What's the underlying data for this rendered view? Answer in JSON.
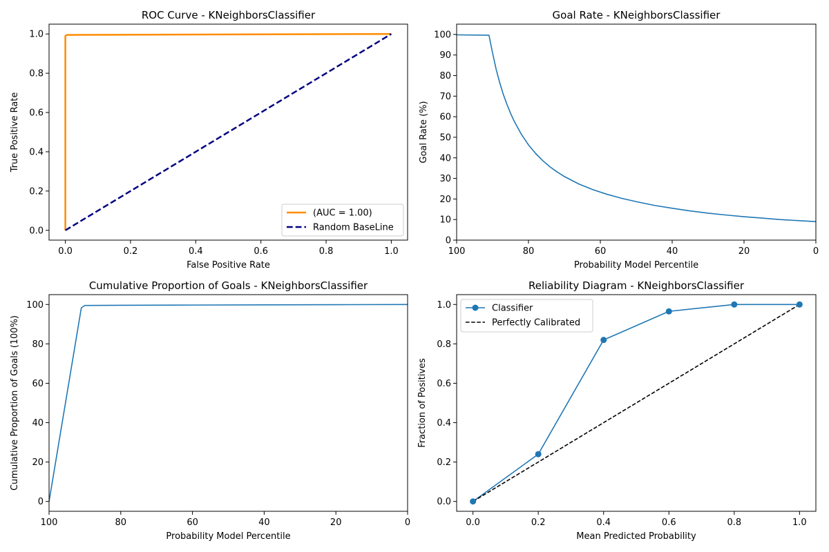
{
  "chart_data": [
    {
      "type": "line",
      "title": "ROC Curve - KNeighborsClassifier",
      "xlabel": "False Positive Rate",
      "ylabel": "True Positive Rate",
      "xlim": [
        -0.05,
        1.05
      ],
      "ylim": [
        -0.05,
        1.05
      ],
      "xticks": [
        0.0,
        0.2,
        0.4,
        0.6,
        0.8,
        1.0
      ],
      "xtick_labels": [
        "0.0",
        "0.2",
        "0.4",
        "0.6",
        "0.8",
        "1.0"
      ],
      "yticks": [
        0.0,
        0.2,
        0.4,
        0.6,
        0.8,
        1.0
      ],
      "ytick_labels": [
        "0.0",
        "0.2",
        "0.4",
        "0.6",
        "0.8",
        "1.0"
      ],
      "legend_position": "lower-right",
      "series": [
        {
          "name": "(AUC = 1.00)",
          "color": "#ff8c00",
          "dash": "solid",
          "width": 2.5,
          "markers": false,
          "x": [
            0.0,
            0.0,
            0.0,
            0.005,
            1.0
          ],
          "y": [
            0.0,
            0.98,
            0.99,
            0.995,
            1.0
          ]
        },
        {
          "name": "Random BaseLine",
          "color": "#000080",
          "dash": "dashed",
          "width": 2.5,
          "markers": false,
          "x": [
            0.0,
            1.0
          ],
          "y": [
            0.0,
            1.0
          ]
        }
      ]
    },
    {
      "type": "line",
      "title": "Goal Rate  - KNeighborsClassifier",
      "xlabel": "Probability Model Percentile",
      "ylabel": "Goal Rate (%)",
      "xlim": [
        100,
        0
      ],
      "ylim": [
        0,
        105
      ],
      "xticks": [
        100,
        80,
        60,
        40,
        20,
        0
      ],
      "xtick_labels": [
        "100",
        "80",
        "60",
        "40",
        "20",
        "0"
      ],
      "yticks": [
        0,
        10,
        20,
        30,
        40,
        50,
        60,
        70,
        80,
        90,
        100
      ],
      "ytick_labels": [
        "0",
        "10",
        "20",
        "30",
        "40",
        "50",
        "60",
        "70",
        "80",
        "90",
        "100"
      ],
      "series": [
        {
          "color": "#1f77b4",
          "dash": "solid",
          "width": 1.6,
          "markers": false,
          "x": [
            100,
            91,
            90,
            89,
            88,
            87,
            86,
            85,
            84,
            82,
            80,
            78,
            76,
            74,
            72,
            70,
            66,
            62,
            58,
            54,
            50,
            45,
            40,
            35,
            30,
            25,
            20,
            15,
            10,
            5,
            0
          ],
          "y": [
            99.8,
            99.6,
            91.0,
            83.0,
            76.5,
            70.8,
            66.0,
            61.7,
            57.9,
            51.5,
            46.3,
            42.1,
            38.6,
            35.6,
            33.1,
            30.9,
            27.3,
            24.5,
            22.2,
            20.3,
            18.7,
            16.9,
            15.5,
            14.2,
            13.1,
            12.2,
            11.4,
            10.7,
            10.0,
            9.5,
            9.0
          ]
        }
      ]
    },
    {
      "type": "line",
      "title": "Cumulative Proportion of Goals  - KNeighborsClassifier",
      "xlabel": "Probability Model Percentile",
      "ylabel": "Cumulative Proportion of Goals (100%)",
      "xlim": [
        100,
        0
      ],
      "ylim": [
        -5,
        105
      ],
      "xticks": [
        100,
        80,
        60,
        40,
        20,
        0
      ],
      "xtick_labels": [
        "100",
        "80",
        "60",
        "40",
        "20",
        "0"
      ],
      "yticks": [
        0,
        20,
        40,
        60,
        80,
        100
      ],
      "ytick_labels": [
        "0",
        "20",
        "40",
        "60",
        "80",
        "100"
      ],
      "series": [
        {
          "color": "#1f77b4",
          "dash": "solid",
          "width": 1.6,
          "markers": false,
          "x": [
            100,
            91,
            90,
            80,
            60,
            40,
            20,
            0
          ],
          "y": [
            0,
            98.3,
            99.5,
            99.6,
            99.7,
            99.8,
            99.9,
            100
          ]
        }
      ]
    },
    {
      "type": "line",
      "title": "Reliability Diagram - KNeighborsClassifier",
      "xlabel": "Mean Predicted Probability",
      "ylabel": "Fraction of Positives",
      "xlim": [
        -0.05,
        1.05
      ],
      "ylim": [
        -0.05,
        1.05
      ],
      "xticks": [
        0.0,
        0.2,
        0.4,
        0.6,
        0.8,
        1.0
      ],
      "xtick_labels": [
        "0.0",
        "0.2",
        "0.4",
        "0.6",
        "0.8",
        "1.0"
      ],
      "yticks": [
        0.0,
        0.2,
        0.4,
        0.6,
        0.8,
        1.0
      ],
      "ytick_labels": [
        "0.0",
        "0.2",
        "0.4",
        "0.6",
        "0.8",
        "1.0"
      ],
      "legend_position": "upper-left",
      "series": [
        {
          "name": " Classifier",
          "color": "#1f77b4",
          "dash": "solid",
          "width": 1.6,
          "markers": true,
          "x": [
            0.0,
            0.2,
            0.4,
            0.6,
            0.8,
            1.0
          ],
          "y": [
            0.0,
            0.24,
            0.82,
            0.965,
            1.0,
            1.0
          ]
        },
        {
          "name": "Perfectly Calibrated",
          "color": "#000000",
          "dash": "dashed",
          "width": 1.6,
          "markers": false,
          "x": [
            0.0,
            1.0
          ],
          "y": [
            0.0,
            1.0
          ]
        }
      ]
    }
  ]
}
